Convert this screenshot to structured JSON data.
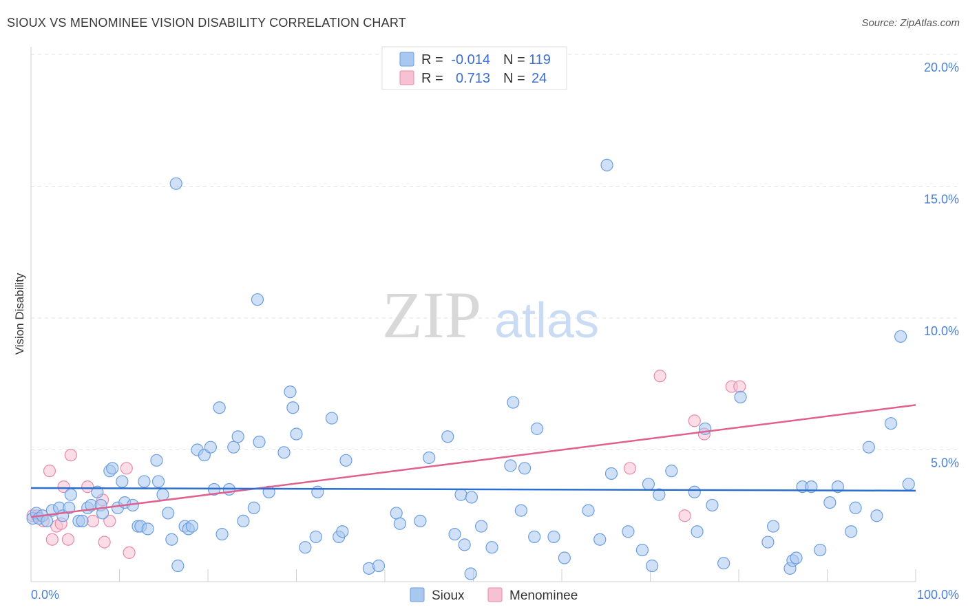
{
  "header": {
    "title": "SIOUX VS MENOMINEE VISION DISABILITY CORRELATION CHART",
    "source": "Source: ZipAtlas.com"
  },
  "watermark": {
    "zip": "ZIP",
    "atlas": "atlas"
  },
  "colors": {
    "sioux_fill": "#a9c8f0",
    "sioux_stroke": "#6a9ee0",
    "sioux_line": "#2a6fd0",
    "menominee_fill": "#f6c1d2",
    "menominee_stroke": "#e88aa8",
    "menominee_line": "#e0608e",
    "grid": "#e2e2e2",
    "tick_label": "#4a7fd4"
  },
  "legend": {
    "rows": [
      {
        "r_label": "R =",
        "r_value": "-0.014",
        "n_label": "N =",
        "n_value": "119"
      },
      {
        "r_label": "R =",
        "r_value": "0.713",
        "n_label": "N =",
        "n_value": "24"
      }
    ]
  },
  "chart_data": {
    "type": "scatter",
    "title": "SIOUX VS MENOMINEE VISION DISABILITY CORRELATION CHART",
    "xlabel": "",
    "ylabel": "Vision Disability",
    "xlim": [
      0,
      100
    ],
    "ylim": [
      0,
      20
    ],
    "x_tick_labels": [
      "0.0%",
      "100.0%"
    ],
    "y_ticks": [
      5,
      10,
      15,
      20
    ],
    "y_tick_labels": [
      "5.0%",
      "10.0%",
      "15.0%",
      "20.0%"
    ],
    "grid": true,
    "legend_position": "top-center",
    "series": [
      {
        "name": "Sioux",
        "r": -0.014,
        "n": 119,
        "trend": {
          "x": [
            0,
            100
          ],
          "y": [
            3.55,
            3.45
          ]
        },
        "points": [
          [
            0.2,
            2.4
          ],
          [
            0.6,
            2.6
          ],
          [
            0.9,
            2.4
          ],
          [
            1.3,
            2.5
          ],
          [
            1.8,
            2.3
          ],
          [
            2.4,
            2.7
          ],
          [
            3.2,
            2.8
          ],
          [
            3.6,
            2.5
          ],
          [
            4.3,
            2.8
          ],
          [
            4.5,
            3.3
          ],
          [
            5.4,
            2.3
          ],
          [
            5.8,
            2.3
          ],
          [
            6.4,
            2.8
          ],
          [
            6.8,
            2.9
          ],
          [
            7.5,
            3.4
          ],
          [
            7.9,
            2.9
          ],
          [
            8.1,
            2.6
          ],
          [
            8.9,
            4.2
          ],
          [
            9.2,
            4.3
          ],
          [
            9.8,
            2.8
          ],
          [
            10.3,
            3.8
          ],
          [
            10.6,
            3.0
          ],
          [
            11.5,
            2.9
          ],
          [
            12.1,
            2.1
          ],
          [
            12.4,
            2.1
          ],
          [
            12.8,
            3.8
          ],
          [
            13.2,
            2.0
          ],
          [
            14.2,
            4.6
          ],
          [
            14.4,
            3.8
          ],
          [
            14.9,
            3.3
          ],
          [
            15.5,
            2.6
          ],
          [
            15.9,
            1.6
          ],
          [
            16.4,
            15.1
          ],
          [
            16.6,
            0.6
          ],
          [
            17.4,
            2.1
          ],
          [
            17.8,
            2.0
          ],
          [
            18.2,
            2.1
          ],
          [
            18.8,
            5.0
          ],
          [
            19.6,
            4.8
          ],
          [
            20.3,
            5.1
          ],
          [
            20.7,
            3.5
          ],
          [
            21.3,
            6.6
          ],
          [
            21.6,
            1.8
          ],
          [
            22.4,
            3.5
          ],
          [
            22.9,
            5.1
          ],
          [
            23.4,
            5.5
          ],
          [
            24.0,
            2.3
          ],
          [
            25.2,
            2.8
          ],
          [
            25.6,
            10.7
          ],
          [
            25.8,
            5.3
          ],
          [
            26.9,
            3.4
          ],
          [
            28.6,
            4.9
          ],
          [
            29.3,
            7.2
          ],
          [
            29.6,
            6.6
          ],
          [
            30.0,
            5.6
          ],
          [
            31.0,
            1.3
          ],
          [
            32.2,
            1.7
          ],
          [
            32.4,
            3.4
          ],
          [
            34.0,
            6.2
          ],
          [
            34.8,
            1.7
          ],
          [
            35.2,
            1.9
          ],
          [
            35.6,
            4.6
          ],
          [
            38.2,
            0.5
          ],
          [
            39.3,
            0.6
          ],
          [
            41.3,
            2.6
          ],
          [
            41.7,
            2.2
          ],
          [
            44.0,
            2.3
          ],
          [
            45.0,
            4.7
          ],
          [
            47.1,
            5.5
          ],
          [
            47.9,
            1.8
          ],
          [
            48.6,
            3.3
          ],
          [
            49.0,
            1.4
          ],
          [
            49.7,
            0.3
          ],
          [
            49.8,
            3.2
          ],
          [
            50.9,
            2.1
          ],
          [
            52.1,
            1.3
          ],
          [
            54.2,
            4.4
          ],
          [
            54.5,
            6.8
          ],
          [
            55.4,
            2.7
          ],
          [
            55.8,
            4.3
          ],
          [
            56.9,
            1.7
          ],
          [
            57.2,
            5.8
          ],
          [
            59.1,
            1.7
          ],
          [
            60.3,
            0.9
          ],
          [
            63.0,
            2.7
          ],
          [
            64.3,
            1.6
          ],
          [
            65.1,
            15.8
          ],
          [
            65.6,
            4.1
          ],
          [
            67.5,
            1.9
          ],
          [
            69.1,
            1.2
          ],
          [
            69.8,
            3.7
          ],
          [
            70.2,
            0.6
          ],
          [
            71.0,
            3.3
          ],
          [
            72.4,
            4.2
          ],
          [
            75.0,
            3.4
          ],
          [
            75.3,
            1.9
          ],
          [
            76.2,
            5.8
          ],
          [
            77.0,
            2.9
          ],
          [
            78.3,
            0.7
          ],
          [
            80.2,
            7.0
          ],
          [
            83.3,
            1.5
          ],
          [
            83.9,
            2.1
          ],
          [
            85.8,
            0.5
          ],
          [
            86.1,
            0.8
          ],
          [
            86.5,
            0.9
          ],
          [
            87.2,
            3.6
          ],
          [
            88.2,
            3.6
          ],
          [
            89.2,
            1.2
          ],
          [
            90.3,
            3.0
          ],
          [
            91.2,
            3.6
          ],
          [
            92.7,
            1.9
          ],
          [
            93.2,
            2.8
          ],
          [
            94.7,
            5.1
          ],
          [
            95.6,
            2.5
          ],
          [
            97.2,
            6.0
          ],
          [
            98.3,
            9.3
          ],
          [
            99.2,
            3.7
          ]
        ]
      },
      {
        "name": "Menominee",
        "r": 0.713,
        "n": 24,
        "trend": {
          "x": [
            0,
            100
          ],
          "y": [
            2.45,
            6.7
          ]
        },
        "points": [
          [
            0.2,
            2.5
          ],
          [
            0.7,
            2.5
          ],
          [
            1.4,
            2.3
          ],
          [
            2.1,
            4.2
          ],
          [
            2.4,
            1.6
          ],
          [
            2.9,
            2.1
          ],
          [
            3.4,
            2.2
          ],
          [
            3.7,
            3.6
          ],
          [
            4.2,
            1.6
          ],
          [
            4.5,
            4.8
          ],
          [
            6.4,
            3.6
          ],
          [
            7.0,
            2.3
          ],
          [
            8.1,
            3.1
          ],
          [
            8.3,
            1.5
          ],
          [
            8.9,
            2.3
          ],
          [
            10.8,
            4.3
          ],
          [
            11.1,
            1.1
          ],
          [
            67.7,
            4.3
          ],
          [
            71.1,
            7.8
          ],
          [
            73.9,
            2.5
          ],
          [
            75.0,
            6.1
          ],
          [
            76.1,
            5.6
          ],
          [
            79.2,
            7.4
          ],
          [
            80.1,
            7.4
          ]
        ]
      }
    ]
  }
}
